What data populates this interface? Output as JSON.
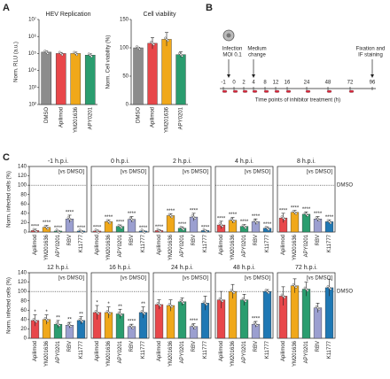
{
  "panels": {
    "a": "A",
    "b": "B",
    "c": "C"
  },
  "chart_data": [
    {
      "type": "bar",
      "title": "HEV Replication",
      "ylabel": "Norm. RLU (a.u.)",
      "log_scale": true,
      "categories": [
        "DMSO",
        "Apilimod",
        "YM201636",
        "APY0201"
      ],
      "values": [
        120000,
        100000,
        100000,
        80000
      ],
      "errors": [
        20000,
        15000,
        20000,
        15000
      ],
      "colors": [
        "#8c8c8c",
        "#e8474a",
        "#f0a81a",
        "#2a9d6f"
      ],
      "ylim": [
        100,
        10000000
      ],
      "yticks": [
        {
          "value": 100,
          "label": "10²"
        },
        {
          "value": 1000,
          "label": "10³"
        },
        {
          "value": 10000,
          "label": "10⁴"
        },
        {
          "value": 100000,
          "label": "10⁵"
        },
        {
          "value": 1000000,
          "label": "10⁶"
        },
        {
          "value": 10000000,
          "label": "10⁷"
        }
      ]
    },
    {
      "type": "bar",
      "title": "Cell viability",
      "ylabel": "Norm. Cell viability (%)",
      "categories": [
        "DMSO",
        "Apilimod",
        "YM201636",
        "APY0201"
      ],
      "values": [
        100,
        108,
        115,
        88
      ],
      "errors": [
        1,
        10,
        12,
        5
      ],
      "colors": [
        "#8c8c8c",
        "#e8474a",
        "#f0a81a",
        "#2a9d6f"
      ],
      "ylim": [
        0,
        150
      ],
      "yticks": [
        0,
        50,
        100,
        150
      ]
    },
    {
      "type": "bar",
      "title": "-1 h.p.i.",
      "annotation": "[vs DMSO]",
      "ylabel": "Norm. infected cells (%)",
      "categories": [
        "Apilimod",
        "YM201636",
        "APY0201",
        "RBV",
        "K11777"
      ],
      "values": [
        3,
        10,
        2,
        28,
        2
      ],
      "errors": [
        3,
        4,
        1,
        8,
        1
      ],
      "significance": [
        "****",
        "****",
        "****",
        "****",
        "****"
      ],
      "colors": [
        "#e8474a",
        "#f0a81a",
        "#2a9d6f",
        "#9b9fd0",
        "#1f78b4"
      ],
      "ylim": [
        0,
        140
      ],
      "yticks": [
        0,
        20,
        40,
        60,
        80,
        100,
        120,
        140
      ],
      "reference_line": 100
    },
    {
      "type": "bar",
      "title": "0 h.p.i.",
      "annotation": "[vs DMSO]",
      "categories": [
        "Apilimod",
        "YM201636",
        "APY0201",
        "RBV",
        "K11777"
      ],
      "values": [
        2,
        22,
        12,
        27,
        2
      ],
      "errors": [
        2,
        4,
        3,
        6,
        1
      ],
      "significance": [
        "****",
        "****",
        "****",
        "****",
        "****"
      ],
      "colors": [
        "#e8474a",
        "#f0a81a",
        "#2a9d6f",
        "#9b9fd0",
        "#1f78b4"
      ],
      "ylim": [
        0,
        140
      ],
      "reference_line": 100
    },
    {
      "type": "bar",
      "title": "2 h.p.i.",
      "annotation": "[vs DMSO]",
      "categories": [
        "Apilimod",
        "YM201636",
        "APY0201",
        "RBV",
        "K11777"
      ],
      "values": [
        3,
        35,
        8,
        32,
        3
      ],
      "errors": [
        2,
        4,
        3,
        8,
        1
      ],
      "significance": [
        "****",
        "****",
        "****",
        "****",
        "****"
      ],
      "colors": [
        "#e8474a",
        "#f0a81a",
        "#2a9d6f",
        "#9b9fd0",
        "#1f78b4"
      ],
      "ylim": [
        0,
        140
      ],
      "reference_line": 100
    },
    {
      "type": "bar",
      "title": "4 h.p.i.",
      "annotation": "[vs DMSO]",
      "categories": [
        "Apilimod",
        "YM201636",
        "APY0201",
        "RBV",
        "K11777"
      ],
      "values": [
        15,
        25,
        12,
        22,
        8
      ],
      "errors": [
        8,
        6,
        4,
        6,
        3
      ],
      "significance": [
        "****",
        "****",
        "****",
        "****",
        "****"
      ],
      "colors": [
        "#e8474a",
        "#f0a81a",
        "#2a9d6f",
        "#9b9fd0",
        "#1f78b4"
      ],
      "ylim": [
        0,
        140
      ],
      "reference_line": 100
    },
    {
      "type": "bar",
      "title": "8 h.p.i.",
      "annotation": "[vs DMSO]",
      "categories": [
        "Apilimod",
        "YM201636",
        "APY0201",
        "RBV",
        "K11777"
      ],
      "values": [
        30,
        42,
        38,
        28,
        22
      ],
      "errors": [
        10,
        4,
        5,
        5,
        4
      ],
      "significance": [
        "****",
        "****",
        "****",
        "****",
        "****"
      ],
      "colors": [
        "#e8474a",
        "#f0a81a",
        "#2a9d6f",
        "#9b9fd0",
        "#1f78b4"
      ],
      "ylim": [
        0,
        140
      ],
      "reference_line": 100,
      "reference_label": "DMSO"
    },
    {
      "type": "bar",
      "title": "12 h.p.i.",
      "annotation": "[vs DMSO]",
      "ylabel": "Norm. infected cells (%)",
      "categories": [
        "Apilimod",
        "YM201636",
        "APY0201",
        "RBV",
        "K11777"
      ],
      "values": [
        38,
        40,
        30,
        28,
        38
      ],
      "errors": [
        12,
        10,
        8,
        6,
        8
      ],
      "significance": [
        "*",
        "*",
        "**",
        "**",
        "**"
      ],
      "colors": [
        "#e8474a",
        "#f0a81a",
        "#2a9d6f",
        "#9b9fd0",
        "#1f78b4"
      ],
      "ylim": [
        0,
        140
      ],
      "yticks": [
        0,
        20,
        40,
        60,
        80,
        100,
        120,
        140
      ],
      "reference_line": 100
    },
    {
      "type": "bar",
      "title": "16 h.p.i.",
      "annotation": "[vs DMSO]",
      "categories": [
        "Apilimod",
        "YM201636",
        "APY0201",
        "RBV",
        "K11777"
      ],
      "values": [
        55,
        55,
        52,
        25,
        55
      ],
      "errors": [
        15,
        12,
        10,
        5,
        12
      ],
      "significance": [
        "*",
        "*",
        "**",
        "****",
        "**"
      ],
      "colors": [
        "#e8474a",
        "#f0a81a",
        "#2a9d6f",
        "#9b9fd0",
        "#1f78b4"
      ],
      "ylim": [
        0,
        140
      ],
      "reference_line": 100
    },
    {
      "type": "bar",
      "title": "24 h.p.i.",
      "annotation": "[vs DMSO]",
      "categories": [
        "Apilimod",
        "YM201636",
        "APY0201",
        "RBV",
        "K11777"
      ],
      "values": [
        72,
        70,
        78,
        25,
        75
      ],
      "errors": [
        10,
        12,
        8,
        6,
        15
      ],
      "significance": [
        null,
        null,
        null,
        "****",
        null
      ],
      "colors": [
        "#e8474a",
        "#f0a81a",
        "#2a9d6f",
        "#9b9fd0",
        "#1f78b4"
      ],
      "ylim": [
        0,
        140
      ],
      "reference_line": 100
    },
    {
      "type": "bar",
      "title": "48 h.p.i.",
      "annotation": "[vs DMSO]",
      "categories": [
        "Apilimod",
        "YM201636",
        "APY0201",
        "RBV",
        "K11777"
      ],
      "values": [
        82,
        100,
        82,
        30,
        100
      ],
      "errors": [
        18,
        15,
        12,
        6,
        4
      ],
      "significance": [
        null,
        null,
        null,
        "****",
        null
      ],
      "colors": [
        "#e8474a",
        "#f0a81a",
        "#2a9d6f",
        "#9b9fd0",
        "#1f78b4"
      ],
      "ylim": [
        0,
        140
      ],
      "reference_line": 100
    },
    {
      "type": "bar",
      "title": "72 h.p.i.",
      "annotation": "[vs DMSO]",
      "categories": [
        "Apilimod",
        "YM201636",
        "APY0201",
        "RBV",
        "K11777"
      ],
      "values": [
        90,
        112,
        105,
        65,
        108
      ],
      "errors": [
        20,
        15,
        15,
        10,
        18
      ],
      "colors": [
        "#e8474a",
        "#f0a81a",
        "#2a9d6f",
        "#9b9fd0",
        "#1f78b4"
      ],
      "ylim": [
        0,
        140
      ],
      "reference_line": 100,
      "reference_label": "DMSO"
    }
  ],
  "timeline": {
    "events": [
      {
        "line1": "Infection",
        "line2": "MOI 0.1"
      },
      {
        "line1": "Medium",
        "line2": "change"
      },
      {
        "line1": "Fixation and",
        "line2": "IF staining"
      }
    ],
    "ticks": [
      -1,
      0,
      2,
      4,
      8,
      12,
      16,
      24,
      48,
      72,
      96
    ],
    "axis_label": "Time points of inhibitor treatment (h)"
  }
}
